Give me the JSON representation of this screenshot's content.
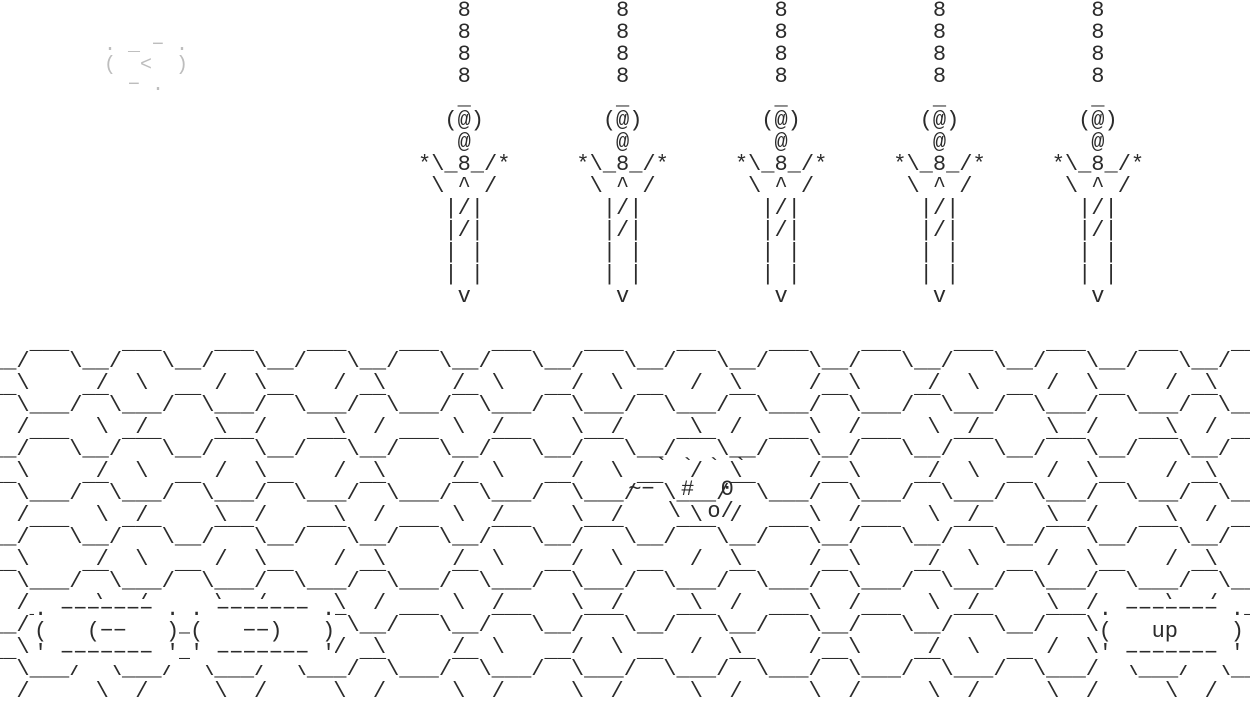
{
  "colors": {
    "background": "#ffffff",
    "foreground": "#2b2b2b",
    "muted": "#bdbdbd"
  },
  "back_button": {
    "art": ". _ − .\n(  <  )\n  − .  "
  },
  "sword": {
    "count": 5,
    "art": "   8   \n   8   \n   8   \n   8   \n   _   \n  (@)  \n   @   \n*\\_8_/*\n \\ ^ / \n  |/|  \n  |/|  \n  | |  \n  | |  \n   v   ",
    "spacing_chars": 5
  },
  "player": {
    "art": "   ` ` ` `\n ~−  #  0 \n    \\  o/ "
  },
  "floor": {
    "hex_row_top": "__/‾‾‾\\__/‾‾‾\\__/‾‾‾\\__/‾‾‾\\__/‾‾‾\\__/‾‾‾\\__/‾‾‾\\__/‾‾‾\\__/‾‾‾\\__/‾‾‾\\__/‾‾‾\\__/‾‾‾\\__/‾‾‾\\__/‾‾‾\\__/‾‾‾\\__/‾‾‾\\",
    "hex_row_side": "  \\     /  \\     /  \\     /  \\     /  \\     /  \\     /  \\     /  \\     /  \\     /  \\     /  \\     /  \\     /  \\     /  \\     /  \\     /  \\     /",
    "hex_row_bottom": "‾‾\\___/‾‾\\___/‾‾\\___/‾‾\\___/‾‾\\___/‾‾\\___/‾‾\\___/‾‾\\___/‾‾\\___/‾‾\\___/‾‾\\___/‾‾\\___/‾‾\\___/‾‾\\___/‾‾\\___/‾‾\\___/",
    "hex_row_side2": "  /     \\  /     \\  /     \\  /     \\  /     \\  /     \\  /     \\  /     \\  /     \\  /     \\  /     \\  /     \\  /     \\  /     \\  /     \\  /     \\",
    "rows": 4
  },
  "hud": {
    "left1": {
      "label": "(−−",
      "art": ". −−−−−−− .\n(   (−−   )\n' −−−−−−− '"
    },
    "left2": {
      "label": "−−)",
      "art": ". −−−−−−− .\n(   −−)   )\n' −−−−−−− '"
    },
    "right": {
      "label": "up",
      "art": ". −−−−−−− .\n(   up    )\n' −−−−−−− '"
    }
  }
}
